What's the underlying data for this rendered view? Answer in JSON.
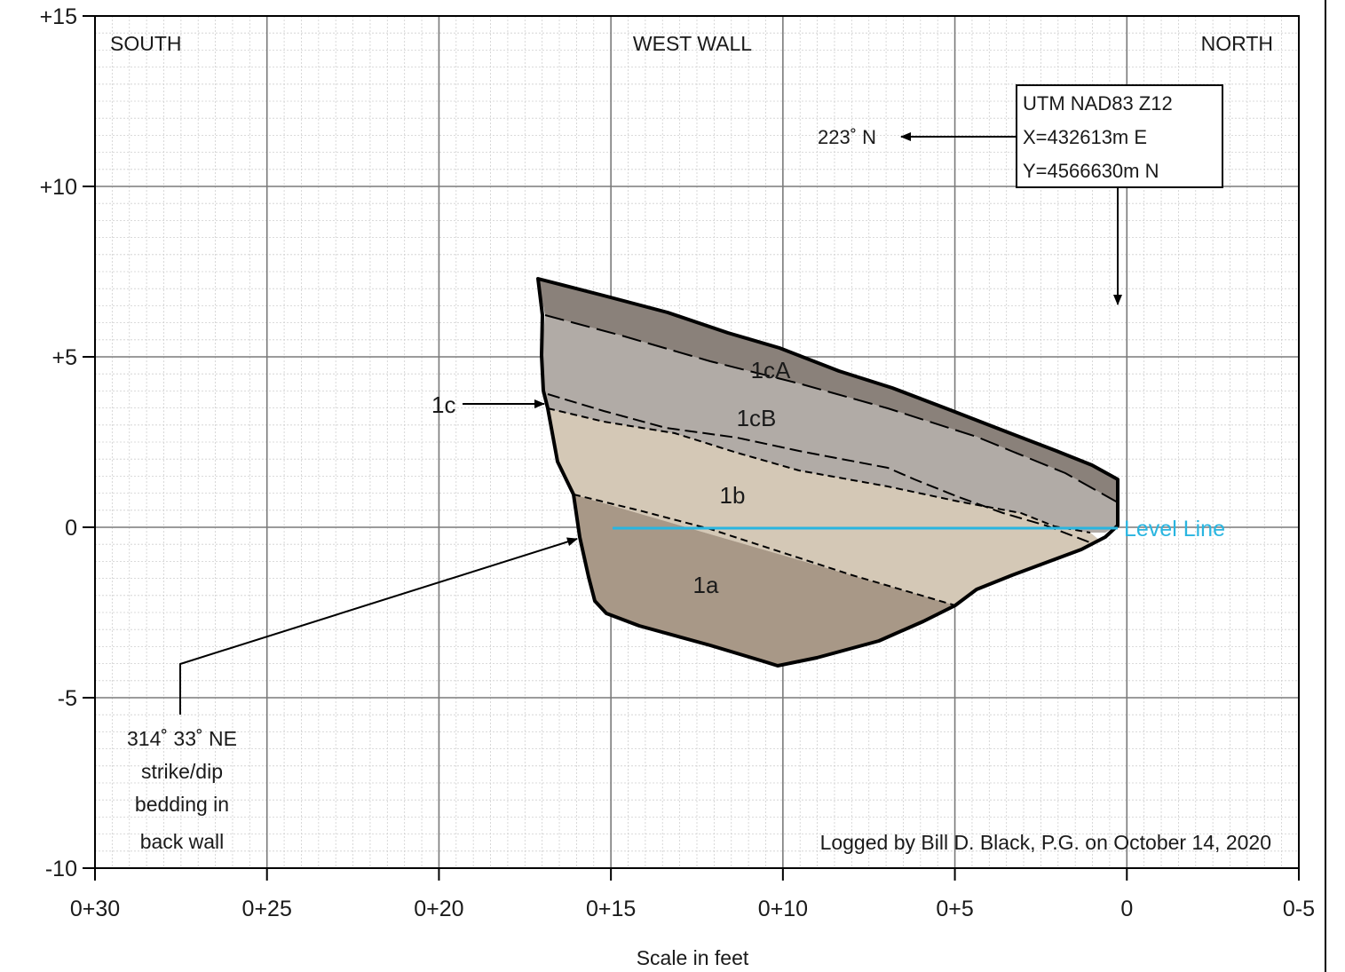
{
  "header": {
    "south": "SOUTH",
    "west_wall": "WEST WALL",
    "north": "NORTH"
  },
  "y_axis": {
    "range_ft": [
      -10,
      15
    ],
    "ticks": [
      {
        "value": 15,
        "label": "+15"
      },
      {
        "value": 10,
        "label": "+10"
      },
      {
        "value": 5,
        "label": "+5"
      },
      {
        "value": 0,
        "label": "0"
      },
      {
        "value": -5,
        "label": "-5"
      },
      {
        "value": -10,
        "label": "-10"
      }
    ]
  },
  "x_axis": {
    "range_ft": [
      30,
      -5
    ],
    "title": "Scale in feet",
    "ticks": [
      {
        "value": 30,
        "label": "0+30"
      },
      {
        "value": 25,
        "label": "0+25"
      },
      {
        "value": 20,
        "label": "0+20"
      },
      {
        "value": 15,
        "label": "0+15"
      },
      {
        "value": 10,
        "label": "0+10"
      },
      {
        "value": 5,
        "label": "0+5"
      },
      {
        "value": 0,
        "label": "0"
      },
      {
        "value": -5,
        "label": "0-5"
      }
    ]
  },
  "location_box": {
    "line1": "UTM NAD83 Z12",
    "line2": "X=432613m E",
    "line3": "Y=4566630m N"
  },
  "bearing_label": "223˚ N",
  "units": [
    {
      "id": "1cA",
      "label": "1cA",
      "color": "#8a817a"
    },
    {
      "id": "1cB",
      "label": "1cB",
      "color": "#b1aba6"
    },
    {
      "id": "1b",
      "label": "1b",
      "color": "#d4c8b6"
    },
    {
      "id": "1a",
      "label": "1a",
      "color": "#a89887"
    }
  ],
  "unit_1c_label": "1c",
  "level_line": {
    "label": "Level Line",
    "color": "#29b5e0"
  },
  "strike_dip": {
    "line1": "314˚ 33˚ NE",
    "line2": "strike/dip",
    "line3": "bedding in",
    "line4": "back wall"
  },
  "credit": "Logged by Bill D. Black, P.G. on October 14, 2020"
}
